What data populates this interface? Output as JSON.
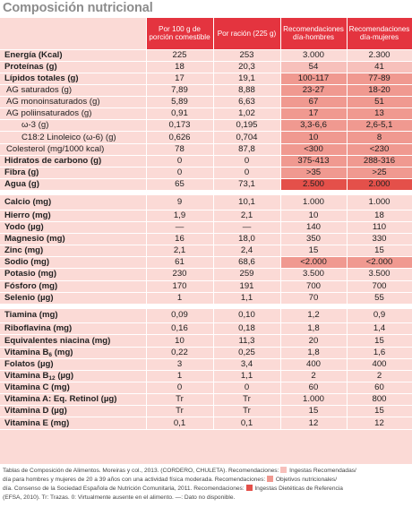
{
  "title": "Composición nutricional",
  "columns": [
    "Por 100 g de porción comestible",
    "Por ración (225 g)",
    "Recomendaciones día-hombres",
    "Recomendaciones día-mujeres"
  ],
  "rows": [
    {
      "label": "Energía (Kcal)",
      "v": [
        "225",
        "253",
        "3.000",
        "2.300"
      ],
      "bold": true,
      "shade": [
        "",
        ""
      ]
    },
    {
      "label": "Proteínas (g)",
      "v": [
        "18",
        "20,3",
        "54",
        "41"
      ],
      "bold": true,
      "shade": [
        "light",
        "light"
      ]
    },
    {
      "label": "Lípidos totales (g)",
      "v": [
        "17",
        "19,1",
        "100-117",
        "77-89"
      ],
      "bold": true,
      "shade": [
        "mid",
        "mid"
      ]
    },
    {
      "label": "AG saturados (g)",
      "v": [
        "7,89",
        "8,88",
        "23-27",
        "18-20"
      ],
      "indent": 1,
      "shade": [
        "mid",
        "mid"
      ]
    },
    {
      "label": "AG monoinsaturados (g)",
      "v": [
        "5,89",
        "6,63",
        "67",
        "51"
      ],
      "indent": 1,
      "shade": [
        "mid",
        "mid"
      ]
    },
    {
      "label": "AG poliinsaturados (g)",
      "v": [
        "0,91",
        "1,02",
        "17",
        "13"
      ],
      "indent": 1,
      "shade": [
        "mid",
        "mid"
      ]
    },
    {
      "label": "ω-3 (g)",
      "v": [
        "0,173",
        "0,195",
        "3,3-6,6",
        "2,6-5,1"
      ],
      "indent": 2,
      "shade": [
        "mid",
        "mid"
      ]
    },
    {
      "label": "C18:2 Linoleico (ω-6) (g)",
      "v": [
        "0,626",
        "0,704",
        "10",
        "8"
      ],
      "indent": 2,
      "shade": [
        "mid",
        "mid"
      ]
    },
    {
      "label": "Colesterol (mg/1000 kcal)",
      "v": [
        "78",
        "87,8",
        "<300",
        "<230"
      ],
      "indent": 1,
      "shade": [
        "mid",
        "mid"
      ]
    },
    {
      "label": "Hidratos de carbono (g)",
      "v": [
        "0",
        "0",
        "375-413",
        "288-316"
      ],
      "bold": true,
      "shade": [
        "mid",
        "mid"
      ]
    },
    {
      "label": "Fibra (g)",
      "v": [
        "0",
        "0",
        ">35",
        ">25"
      ],
      "bold": true,
      "shade": [
        "mid",
        "mid"
      ]
    },
    {
      "label": "Agua (g)",
      "v": [
        "65",
        "73,1",
        "2.500",
        "2.000"
      ],
      "bold": true,
      "shade": [
        "dark",
        "dark"
      ]
    },
    {
      "label": "Calcio (mg)",
      "v": [
        "9",
        "10,1",
        "1.000",
        "1.000"
      ],
      "bold": true,
      "gap": true,
      "shade": [
        "",
        ""
      ]
    },
    {
      "label": "Hierro (mg)",
      "v": [
        "1,9",
        "2,1",
        "10",
        "18"
      ],
      "bold": true,
      "shade": [
        "",
        ""
      ]
    },
    {
      "label": "Yodo (µg)",
      "v": [
        "—",
        "—",
        "140",
        "110"
      ],
      "bold": true,
      "shade": [
        "",
        ""
      ]
    },
    {
      "label": "Magnesio (mg)",
      "v": [
        "16",
        "18,0",
        "350",
        "330"
      ],
      "bold": true,
      "shade": [
        "",
        ""
      ]
    },
    {
      "label": "Zinc (mg)",
      "v": [
        "2,1",
        "2,4",
        "15",
        "15"
      ],
      "bold": true,
      "shade": [
        "",
        ""
      ]
    },
    {
      "label": "Sodio (mg)",
      "v": [
        "61",
        "68,6",
        "<2.000",
        "<2.000"
      ],
      "bold": true,
      "shade": [
        "mid",
        "mid"
      ]
    },
    {
      "label": "Potasio (mg)",
      "v": [
        "230",
        "259",
        "3.500",
        "3.500"
      ],
      "bold": true,
      "shade": [
        "",
        ""
      ]
    },
    {
      "label": "Fósforo (mg)",
      "v": [
        "170",
        "191",
        "700",
        "700"
      ],
      "bold": true,
      "shade": [
        "",
        ""
      ]
    },
    {
      "label": "Selenio (µg)",
      "v": [
        "1",
        "1,1",
        "70",
        "55"
      ],
      "bold": true,
      "shade": [
        "",
        ""
      ]
    },
    {
      "label": "Tiamina (mg)",
      "v": [
        "0,09",
        "0,10",
        "1,2",
        "0,9"
      ],
      "bold": true,
      "gap": true,
      "shade": [
        "",
        ""
      ]
    },
    {
      "label": "Riboflavina (mg)",
      "v": [
        "0,16",
        "0,18",
        "1,8",
        "1,4"
      ],
      "bold": true,
      "shade": [
        "",
        ""
      ]
    },
    {
      "label": "Equivalentes niacina (mg)",
      "v": [
        "10",
        "11,3",
        "20",
        "15"
      ],
      "bold": true,
      "shade": [
        "",
        ""
      ]
    },
    {
      "label": "Vitamina B",
      "sub": "6",
      "after": " (mg)",
      "v": [
        "0,22",
        "0,25",
        "1,8",
        "1,6"
      ],
      "bold": true,
      "shade": [
        "",
        ""
      ]
    },
    {
      "label": "Folatos (µg)",
      "v": [
        "3",
        "3,4",
        "400",
        "400"
      ],
      "bold": true,
      "shade": [
        "",
        ""
      ]
    },
    {
      "label": "Vitamina B",
      "sub": "12",
      "after": " (µg)",
      "v": [
        "1",
        "1,1",
        "2",
        "2"
      ],
      "bold": true,
      "shade": [
        "",
        ""
      ]
    },
    {
      "label": "Vitamina C (mg)",
      "v": [
        "0",
        "0",
        "60",
        "60"
      ],
      "bold": true,
      "shade": [
        "",
        ""
      ]
    },
    {
      "label": "Vitamina A: Eq. Retinol (µg)",
      "v": [
        "Tr",
        "Tr",
        "1.000",
        "800"
      ],
      "bold": true,
      "shade": [
        "",
        ""
      ]
    },
    {
      "label": "Vitamina D (µg)",
      "v": [
        "Tr",
        "Tr",
        "15",
        "15"
      ],
      "bold": true,
      "shade": [
        "",
        ""
      ]
    },
    {
      "label": "Vitamina E (mg)",
      "v": [
        "0,1",
        "0,1",
        "12",
        "12"
      ],
      "bold": true,
      "shade": [
        "",
        ""
      ]
    }
  ],
  "notes": {
    "line1_a": "Tablas de Composición de Alimentos. Moreiras y col., 2013. (CORDERO, CHULETA). Recomendaciones: ",
    "line1_b": " Ingestas Recomendadas/",
    "line2_a": "día para hombres y mujeres de 20 a 39 años con una actividad física moderada. Recomendaciones: ",
    "line2_b": " Objetivos nutricionales/",
    "line3_a": "día. Consenso de la Sociedad Española de Nutrición Comunitaria, 2011. Recomendaciones: ",
    "line3_b": " Ingestas Dietéticas de Referencia",
    "line4": "(EFSA, 2010). Tr: Trazas. 0: Virtualmente ausente en el alimento. —: Dato no disponible."
  },
  "colors": {
    "header": "#e4343f",
    "row_bg": "#fbdad6",
    "rec_light": "#f7c0bb",
    "rec_mid": "#f09990",
    "rec_dark": "#e4504a",
    "title": "#8c8c8c"
  }
}
